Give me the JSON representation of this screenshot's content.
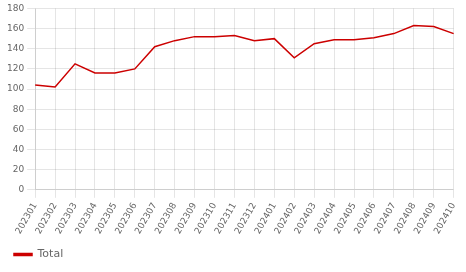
{
  "chart_data": {
    "type": "line",
    "categories": [
      "202301",
      "202302",
      "202303",
      "202304",
      "202305",
      "202306",
      "202307",
      "202308",
      "202309",
      "202310",
      "202311",
      "202312",
      "202401",
      "202402",
      "202403",
      "202404",
      "202405",
      "202406",
      "202407",
      "202408",
      "202409",
      "202410"
    ],
    "series": [
      {
        "name": "Total",
        "color": "#cc0000",
        "values": [
          104,
          102,
          125,
          116,
          116,
          120,
          142,
          148,
          152,
          152,
          153,
          148,
          150,
          131,
          145,
          149,
          149,
          151,
          155,
          163,
          162,
          155
        ]
      }
    ],
    "ylim": [
      0,
      180
    ],
    "yticks": [
      0,
      20,
      40,
      60,
      80,
      100,
      120,
      140,
      160,
      180
    ],
    "grid": true,
    "legend": "lower left"
  }
}
